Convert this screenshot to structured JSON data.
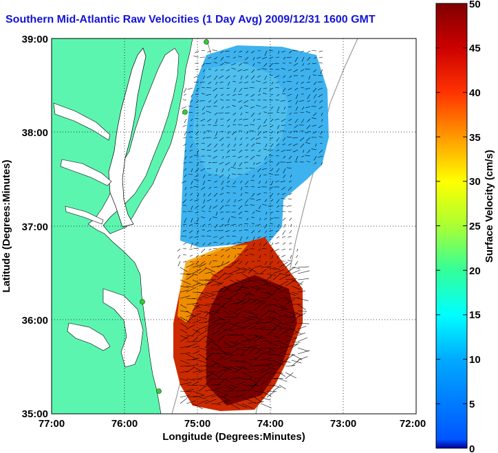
{
  "title": "Southern Mid-Atlantic Raw Velocities (1 Day Avg) 2009/12/31 1600 GMT",
  "map": {
    "xlabel": "Longitude (Degrees:Minutes)",
    "ylabel": "Latitude (Degrees:Minutes)",
    "x_ticks": [
      "77:00",
      "76:00",
      "75:00",
      "74:00",
      "73:00",
      "72:00"
    ],
    "y_ticks": [
      "39:00",
      "38:00",
      "37:00",
      "36:00",
      "35:00"
    ],
    "lon_range": [
      -77,
      -72
    ],
    "lat_range": [
      35,
      39
    ],
    "land_color": "#5cf5b0",
    "grid": true
  },
  "colorbar": {
    "label": "Surface Velocity (cm/s)",
    "min": 0,
    "max": 50,
    "ticks": [
      "50",
      "45",
      "40",
      "35",
      "30",
      "25",
      "20",
      "15",
      "10",
      "5",
      "0"
    ],
    "colormap": "jet"
  }
}
